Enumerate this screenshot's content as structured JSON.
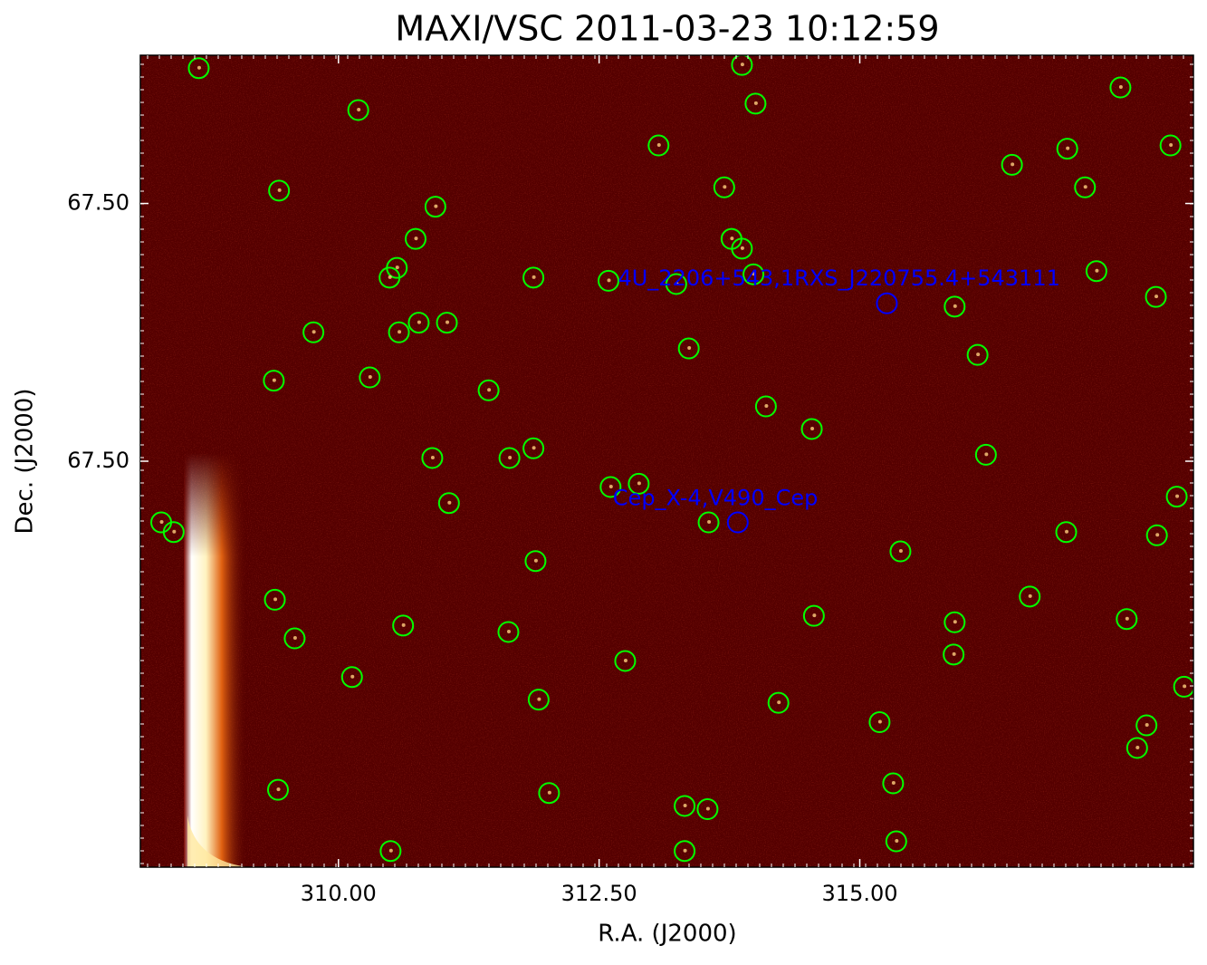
{
  "chart_data": {
    "type": "scatter",
    "title": "MAXI/VSC 2011-03-23 10:12:59",
    "xlabel": "R.A. (J2000)",
    "ylabel": "Dec. (J2000)",
    "xlim": [
      308.1,
      318.2
    ],
    "ylim": [
      67.4834,
      67.5086
    ],
    "xticks": [
      {
        "value": 310,
        "label": "310.00"
      },
      {
        "value": 312.5,
        "label": "312.50"
      },
      {
        "value": 315,
        "label": "315.00"
      }
    ],
    "yticks": [
      {
        "value": 67.504,
        "label": "67.50"
      },
      {
        "value": 67.496,
        "label": "67.50"
      }
    ],
    "series": [
      {
        "color": "#00ff00",
        "x": [
          308.66,
          310.19,
          309.43,
          310.93,
          310.74,
          310.56,
          310.49,
          311.87,
          312.59,
          309.76,
          310.58,
          310.77,
          311.04,
          309.38,
          310.3,
          311.44,
          310.9,
          311.64,
          311.87,
          311.06,
          312.61,
          312.88,
          308.3,
          308.42,
          313.55,
          311.89,
          309.39,
          310.62,
          309.58,
          311.63,
          310.13,
          312.75,
          311.92,
          314.22,
          309.42,
          312.02,
          313.32,
          313.54,
          310.5,
          313.32,
          313.87,
          314.0,
          313.07,
          313.7,
          313.77,
          313.87,
          313.98,
          313.24,
          313.36,
          314.1,
          314.54,
          314.56,
          315.39,
          317.5,
          317.98,
          316.99,
          316.46,
          317.16,
          317.27,
          317.84,
          315.91,
          316.13,
          316.21,
          318.04,
          316.98,
          317.85,
          316.63,
          315.91,
          317.56,
          315.9,
          318.11,
          315.19,
          317.75,
          317.66,
          315.32,
          315.35
        ],
        "values": [
          67.5082,
          67.5069,
          67.5044,
          67.5039,
          67.5029,
          67.502,
          67.5017,
          67.5017,
          67.5016,
          67.5,
          67.5,
          67.5003,
          67.5003,
          67.4985,
          67.4986,
          67.4982,
          67.4961,
          67.4961,
          67.4964,
          67.4947,
          67.4952,
          67.4953,
          67.4941,
          67.4938,
          67.4941,
          67.4929,
          67.4917,
          67.4909,
          67.4905,
          67.4907,
          67.4893,
          67.4898,
          67.4886,
          67.4885,
          67.4858,
          67.4857,
          67.4853,
          67.4852,
          67.4839,
          67.4839,
          67.5083,
          67.5071,
          67.5058,
          67.5045,
          67.5029,
          67.5026,
          67.5018,
          67.5015,
          67.4995,
          67.4977,
          67.497,
          67.4912,
          67.4932,
          67.5076,
          67.5058,
          67.5057,
          67.5052,
          67.5045,
          67.5019,
          67.5011,
          67.5008,
          67.4993,
          67.4962,
          67.4949,
          67.4938,
          67.4937,
          67.4918,
          67.491,
          67.4911,
          67.49,
          67.489,
          67.4879,
          67.4878,
          67.4871,
          67.486,
          67.4842
        ]
      }
    ],
    "annotations": [
      {
        "text": "4U_2206+543,1RXS_J220755.4+543111",
        "x": 315.26,
        "y": 67.5009,
        "color": "#0000ff"
      },
      {
        "text": "Cep_X-4,V490_Cep",
        "x": 313.83,
        "y": 67.4941,
        "color": "#0000ff"
      }
    ]
  }
}
